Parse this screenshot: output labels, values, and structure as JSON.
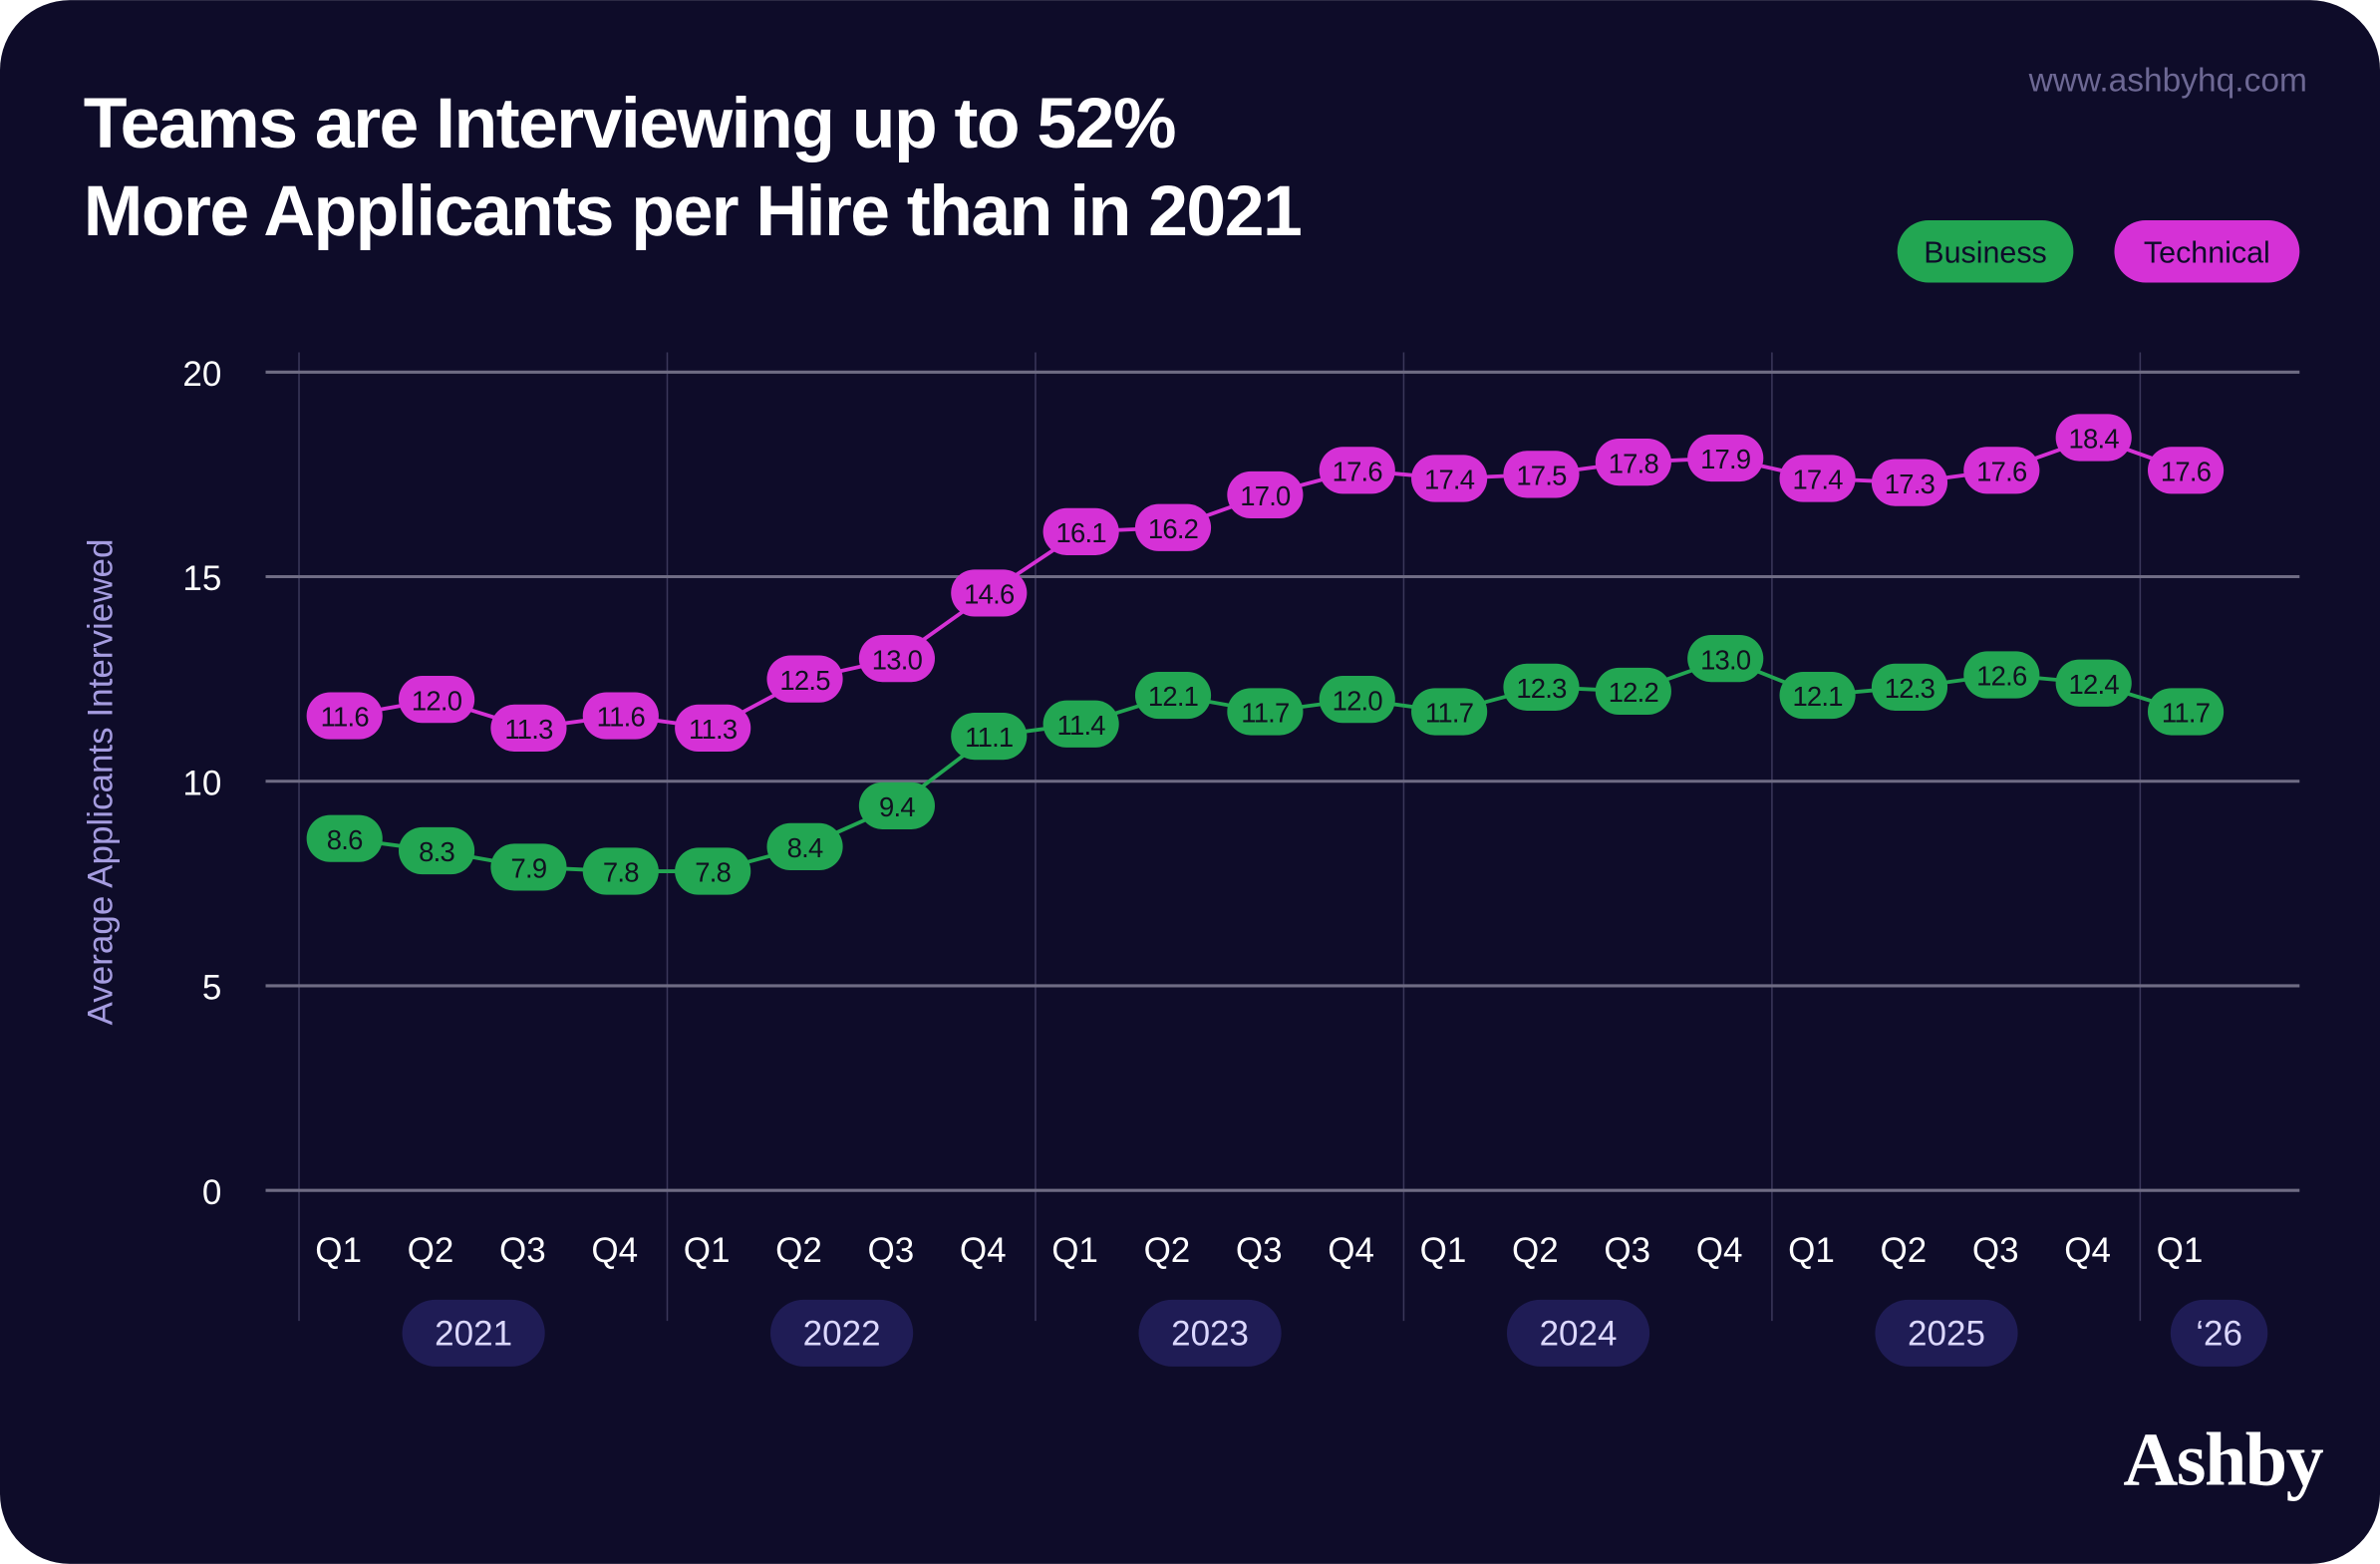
{
  "header": {
    "title_line1": "Teams are Interviewing up to 52%",
    "title_line2": "More Applicants per Hire than in 2021",
    "url": "www.ashbyhq.com",
    "logo": "Ashby"
  },
  "colors": {
    "background": "#0e0c29",
    "business": "#22a652",
    "technical": "#d531d6",
    "year_pill": "#1f1c55",
    "grid": "#6f6c84",
    "axis_label": "#a59ce0",
    "url": "#6d6894"
  },
  "chart_data": {
    "type": "line",
    "title": "Teams are Interviewing up to 52% More Applicants per Hire than in 2021",
    "xlabel": "",
    "ylabel": "Average Applicants Interviewed",
    "ylim": [
      0,
      20
    ],
    "yticks": [
      "0",
      "5",
      "10",
      "15",
      "20"
    ],
    "grid": true,
    "legend_placement": "top-right",
    "categories": [
      "Q1",
      "Q2",
      "Q3",
      "Q4",
      "Q1",
      "Q2",
      "Q3",
      "Q4",
      "Q1",
      "Q2",
      "Q3",
      "Q4",
      "Q1",
      "Q2",
      "Q3",
      "Q4",
      "Q1",
      "Q2",
      "Q3",
      "Q4",
      "Q1"
    ],
    "year_groups": [
      {
        "label": "2021",
        "quarters": 4
      },
      {
        "label": "2022",
        "quarters": 4
      },
      {
        "label": "2023",
        "quarters": 4
      },
      {
        "label": "2024",
        "quarters": 4
      },
      {
        "label": "2025",
        "quarters": 4
      },
      {
        "label": "‘26",
        "quarters": 1
      }
    ],
    "series": [
      {
        "name": "Business",
        "color": "#22a652",
        "values": [
          8.6,
          8.3,
          7.9,
          7.8,
          7.8,
          8.4,
          9.4,
          11.1,
          11.4,
          12.1,
          11.7,
          12.0,
          11.7,
          12.3,
          12.2,
          13.0,
          12.1,
          12.3,
          12.6,
          12.4,
          11.7
        ],
        "labels": [
          "8.6",
          "8.3",
          "7.9",
          "7.8",
          "7.8",
          "8.4",
          "9.4",
          "11.1",
          "11.4",
          "12.1",
          "11.7",
          "12.0",
          "11.7",
          "12.3",
          "12.2",
          "13.0",
          "12.1",
          "12.3",
          "12.6",
          "12.4",
          "11.7"
        ]
      },
      {
        "name": "Technical",
        "color": "#d531d6",
        "values": [
          11.6,
          12.0,
          11.3,
          11.6,
          11.3,
          12.5,
          13.0,
          14.6,
          16.1,
          16.2,
          17.0,
          17.6,
          17.4,
          17.5,
          17.8,
          17.9,
          17.4,
          17.3,
          17.6,
          18.4,
          17.6
        ],
        "labels": [
          "11.6",
          "12.0",
          "11.3",
          "11.6",
          "11.3",
          "12.5",
          "13.0",
          "14.6",
          "16.1",
          "16.2",
          "17.0",
          "17.6",
          "17.4",
          "17.5",
          "17.8",
          "17.9",
          "17.4",
          "17.3",
          "17.6",
          "18.4",
          "17.6"
        ]
      }
    ]
  }
}
